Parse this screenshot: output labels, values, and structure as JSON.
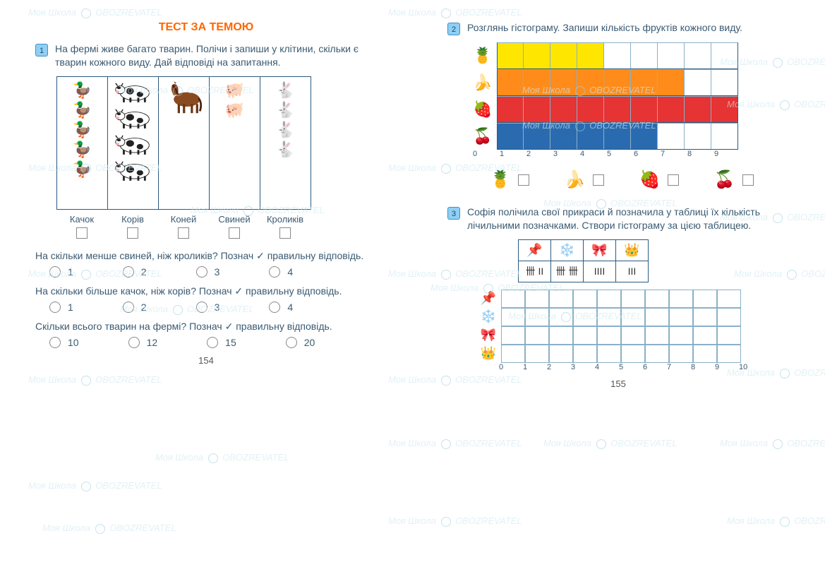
{
  "title": "ТЕСТ ЗА ТЕМОЮ",
  "page_left_num": "154",
  "page_right_num": "155",
  "watermark_text": "Моя Школа OBOZREVATEL",
  "task1": {
    "num": "1",
    "text": "На фермі живе багато тварин. Полічи і запиши у клітини, скільки є тварин кожного виду. Дай відповіді на запитання.",
    "animals": [
      {
        "label": "Качок",
        "icon": "🦆",
        "count": 5
      },
      {
        "label": "Корів",
        "icon": "cow",
        "count": 4
      },
      {
        "label": "Коней",
        "icon": "horse",
        "count": 1
      },
      {
        "label": "Свиней",
        "icon": "🐖",
        "count": 2
      },
      {
        "label": "Кроликів",
        "icon": "🐇",
        "count": 4
      }
    ],
    "q1": {
      "text": "На скільки менше свиней, ніж кроликів? Познач ✓ правильну відповідь.",
      "options": [
        "1",
        "2",
        "3",
        "4"
      ]
    },
    "q2": {
      "text": "На скільки більше качок, ніж корів? Познач ✓ правильну відповідь.",
      "options": [
        "1",
        "2",
        "3",
        "4"
      ]
    },
    "q3": {
      "text": "Скільки всього тварин на фермі? Познач ✓ правильну відповідь.",
      "options": [
        "10",
        "12",
        "15",
        "20"
      ]
    }
  },
  "task2": {
    "num": "2",
    "text": "Розглянь гістограму. Запиши кількість фруктів кожного виду.",
    "max": 9,
    "rows": [
      {
        "icon": "🍍",
        "value": 4,
        "color": "#ffe600"
      },
      {
        "icon": "🍌",
        "value": 7,
        "color": "#ff8c1a"
      },
      {
        "icon": "🍓",
        "value": 9,
        "color": "#e63333"
      },
      {
        "icon": "🍒",
        "value": 6,
        "color": "#2a6bb0"
      }
    ],
    "axis": [
      "0",
      "1",
      "2",
      "3",
      "4",
      "5",
      "6",
      "7",
      "8",
      "9"
    ],
    "answer_icons": [
      "🍍",
      "🍌",
      "🍓",
      "🍒"
    ]
  },
  "task3": {
    "num": "3",
    "text": "Софія полічила свої прикраси й позначила у таблиці їх кількість лічильними позначками. Створи гістограму за цією таблицею.",
    "header_icons": [
      "📌",
      "❄️",
      "🎀",
      "👑"
    ],
    "tallies": [
      "卌 ІІ",
      "卌 卌",
      "ІІІІ",
      "ІІІ"
    ],
    "hist_icons": [
      "📌",
      "❄️",
      "🎀",
      "👑"
    ],
    "hist_max": 10,
    "axis": [
      "0",
      "1",
      "2",
      "3",
      "4",
      "5",
      "6",
      "7",
      "8",
      "9",
      "10"
    ]
  },
  "colors": {
    "title": "#ff6600",
    "text": "#3a5a72",
    "border": "#2a5a80",
    "grid": "#8ab0c8"
  }
}
